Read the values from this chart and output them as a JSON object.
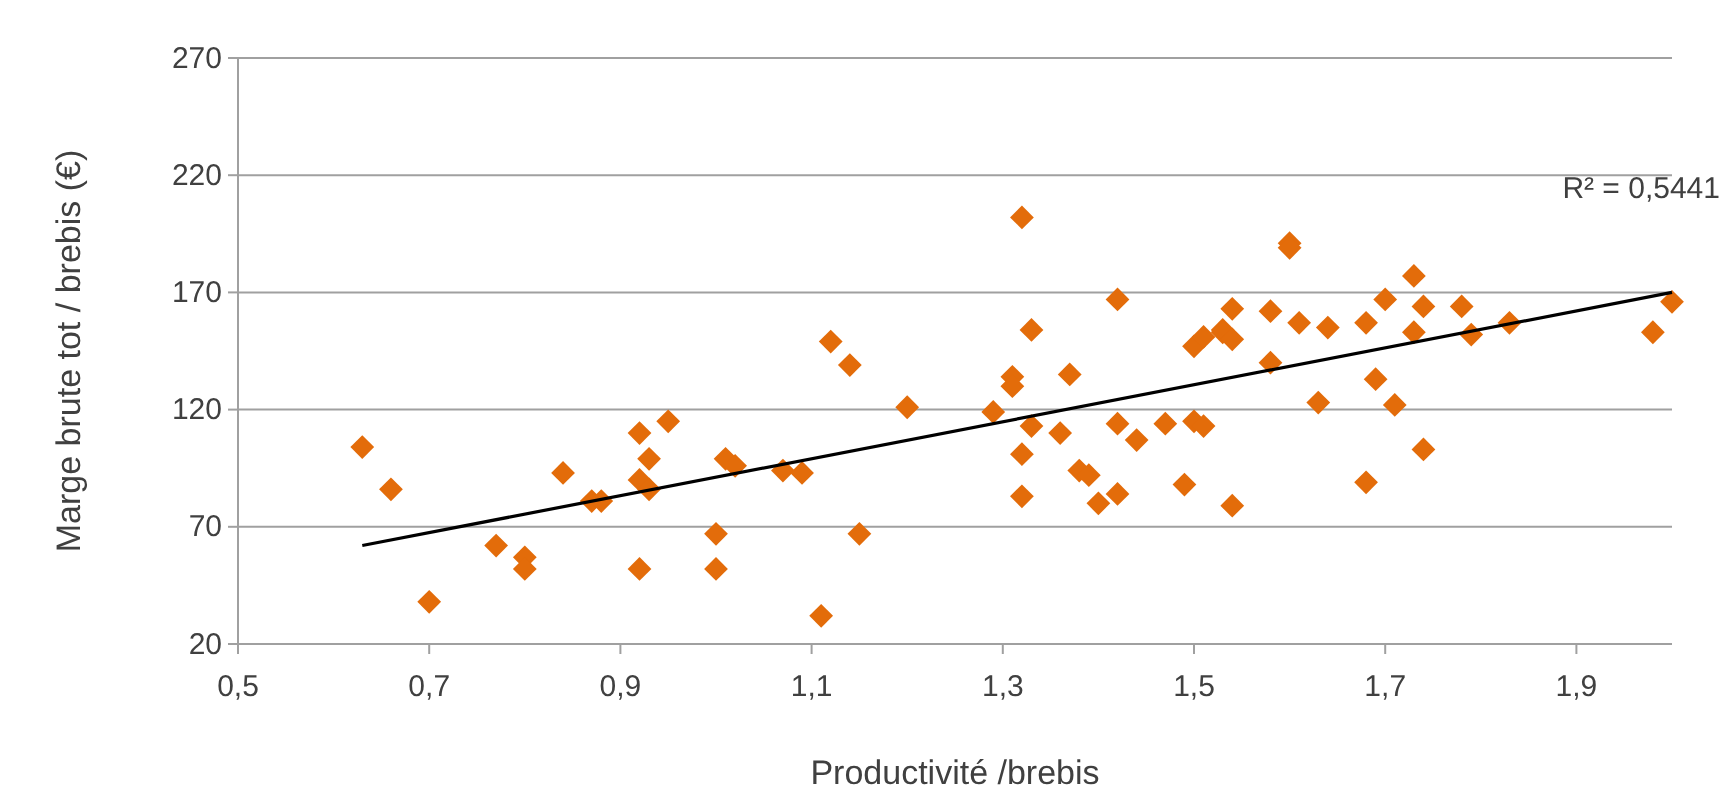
{
  "chart_data": {
    "type": "scatter",
    "xlabel": "Productivité /brebis",
    "ylabel": "Marge brute tot / brebis (€)",
    "xlim": [
      0.5,
      2.0
    ],
    "xticks": [
      {
        "value": 0.5,
        "label": "0,5"
      },
      {
        "value": 0.7,
        "label": "0,7"
      },
      {
        "value": 0.9,
        "label": "0,9"
      },
      {
        "value": 1.1,
        "label": "1,1"
      },
      {
        "value": 1.3,
        "label": "1,3"
      },
      {
        "value": 1.5,
        "label": "1,5"
      },
      {
        "value": 1.7,
        "label": "1,7"
      },
      {
        "value": 1.9,
        "label": "1,9"
      }
    ],
    "ylim": [
      20,
      270
    ],
    "yticks": [
      20,
      70,
      120,
      170,
      220,
      270
    ],
    "grid": "y",
    "annotations": [
      "R² = 0,5441"
    ],
    "series": [
      {
        "color": "#e36c0a",
        "marker": "diamond",
        "x": [
          0.63,
          0.66,
          0.7,
          0.77,
          0.8,
          0.8,
          0.84,
          0.87,
          0.88,
          0.92,
          0.92,
          0.93,
          0.93,
          0.92,
          0.95,
          1.0,
          1.0,
          1.01,
          1.02,
          1.07,
          1.09,
          1.11,
          1.12,
          1.14,
          1.15,
          1.2,
          1.29,
          1.31,
          1.31,
          1.32,
          1.33,
          1.33,
          1.32,
          1.32,
          1.36,
          1.37,
          1.38,
          1.39,
          1.4,
          1.42,
          1.42,
          1.42,
          1.44,
          1.47,
          1.49,
          1.5,
          1.5,
          1.51,
          1.51,
          1.53,
          1.53,
          1.54,
          1.54,
          1.54,
          1.58,
          1.58,
          1.6,
          1.6,
          1.61,
          1.64,
          1.63,
          1.68,
          1.68,
          1.69,
          1.7,
          1.71,
          1.73,
          1.73,
          1.74,
          1.74,
          1.78,
          1.79,
          1.83,
          1.98,
          2.0
        ],
        "values": [
          104,
          86,
          38,
          62,
          57,
          52,
          93,
          81,
          81,
          110,
          90,
          99,
          86,
          52,
          115,
          67,
          52,
          99,
          96,
          94,
          93,
          32,
          149,
          139,
          67,
          121,
          119,
          134,
          130,
          202,
          154,
          113,
          101,
          83,
          110,
          135,
          94,
          92,
          80,
          167,
          114,
          84,
          107,
          114,
          88,
          147,
          115,
          113,
          151,
          154,
          153,
          163,
          150,
          79,
          162,
          140,
          191,
          189,
          157,
          155,
          123,
          157,
          89,
          133,
          167,
          122,
          177,
          153,
          164,
          103,
          164,
          152,
          157,
          153,
          166
        ]
      },
      {
        "type": "line",
        "color": "#000000",
        "x": [
          0.63,
          2.0
        ],
        "values": [
          62,
          170
        ],
        "marker": "none"
      }
    ]
  }
}
